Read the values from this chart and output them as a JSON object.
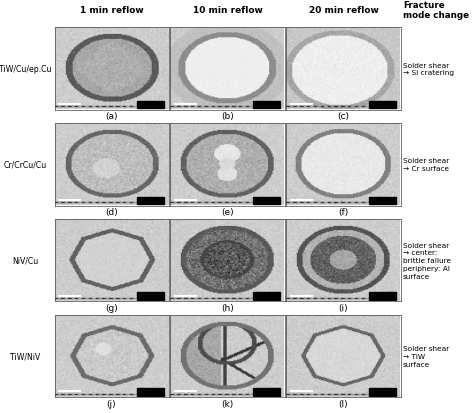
{
  "title": "",
  "col_headers": [
    "1 min reflow",
    "10 min reflow",
    "20 min reflow"
  ],
  "fracture_header": "Fracture\nmode change",
  "row_labels": [
    "TiW/Cu/ep.Cu",
    "Cr/CrCu/Cu",
    "NiV/Cu",
    "TiW/NiV"
  ],
  "fracture_labels": [
    "Solder shear\n→ Si cratering",
    "Solder shear\n→ Cr surface",
    "Solder shear\n→ center:\nbrittle failure\nperiphery: Al\nsurface",
    "Solder shear\n→ TiW\nsurface"
  ],
  "subfig_labels": [
    [
      "(a)",
      "(b)",
      "(c)"
    ],
    [
      "(d)",
      "(e)",
      "(f)"
    ],
    [
      "(g)",
      "(h)",
      "(i)"
    ],
    [
      "(j)",
      "(k)",
      "(l)"
    ]
  ],
  "bg_color": "#ffffff",
  "text_color": "#000000",
  "n_rows": 4,
  "n_cols": 3
}
